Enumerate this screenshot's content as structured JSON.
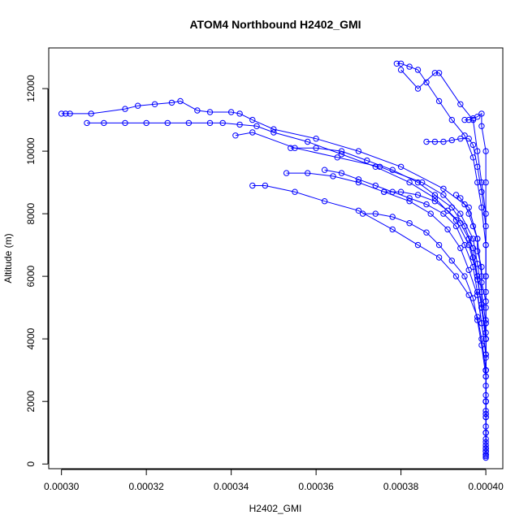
{
  "chart_data": {
    "type": "scatter",
    "title": "ATOM4 Northbound H2402_GMI",
    "xlabel": "H2402_GMI",
    "ylabel": "Altitude (m)",
    "xlim": [
      0.000297,
      0.000404
    ],
    "ylim": [
      -150,
      13300
    ],
    "x_ticks": [
      0.0003,
      0.00032,
      0.00034,
      0.00036,
      0.00038,
      0.0004
    ],
    "x_tick_labels": [
      "0.00030",
      "0.00032",
      "0.00034",
      "0.00036",
      "0.00038",
      "0.00040"
    ],
    "y_ticks": [
      0,
      2000,
      4000,
      6000,
      8000,
      10000,
      12000
    ],
    "y_tick_labels": [
      "0",
      "2000",
      "4000",
      "6000",
      "8000",
      "10000",
      "12000"
    ],
    "grid": false,
    "legend": "none",
    "color": "#0000ff",
    "marker": "open-circle",
    "series": [
      {
        "x": [
          0.0003,
          0.000301,
          0.000302,
          0.000307,
          0.000315,
          0.000318,
          0.000322,
          0.000326,
          0.000328,
          0.000332,
          0.000335,
          0.00034,
          0.000342,
          0.000345,
          0.00035,
          0.00036,
          0.00037,
          0.00038,
          0.00039,
          0.000396,
          0.000398,
          0.000399,
          0.000399,
          0.0004,
          0.0004,
          0.0004,
          0.0004,
          0.0004,
          0.0004,
          0.0004
        ],
        "y": [
          11200,
          11200,
          11200,
          11200,
          11350,
          11450,
          11500,
          11550,
          11600,
          11300,
          11250,
          11250,
          11200,
          11000,
          10700,
          10400,
          10000,
          9500,
          8800,
          8200,
          7200,
          6000,
          5000,
          4000,
          3000,
          2000,
          1200,
          700,
          400,
          250
        ]
      },
      {
        "x": [
          0.000306,
          0.00031,
          0.000315,
          0.00032,
          0.000325,
          0.00033,
          0.000335,
          0.000338,
          0.000342,
          0.000346,
          0.00035,
          0.000358,
          0.000366,
          0.000374,
          0.000382,
          0.000388,
          0.000393,
          0.000396,
          0.000398,
          0.000399,
          0.0004,
          0.0004,
          0.0004,
          0.0004,
          0.0004
        ],
        "y": [
          10900,
          10900,
          10900,
          10900,
          10900,
          10900,
          10900,
          10900,
          10850,
          10800,
          10600,
          10300,
          9900,
          9500,
          9000,
          8500,
          7800,
          7000,
          6000,
          5000,
          4000,
          3000,
          2000,
          1000,
          300
        ]
      },
      {
        "x": [
          0.000341,
          0.000345,
          0.000355,
          0.000365,
          0.000375,
          0.000385,
          0.00039,
          0.000394,
          0.000397,
          0.000398,
          0.000399,
          0.0004,
          0.0004,
          0.0004,
          0.0004,
          0.0004,
          0.0004
        ],
        "y": [
          10500,
          10600,
          10100,
          9800,
          9500,
          9000,
          8600,
          8000,
          7200,
          6400,
          5500,
          4500,
          3500,
          2500,
          1500,
          800,
          300
        ]
      },
      {
        "x": [
          0.000354,
          0.00036,
          0.000366,
          0.000372,
          0.000378,
          0.000384,
          0.000388,
          0.000392,
          0.000395,
          0.000397,
          0.000398,
          0.000399,
          0.0004,
          0.0004,
          0.0004,
          0.0004
        ],
        "y": [
          10100,
          10100,
          10000,
          9700,
          9400,
          9000,
          8600,
          8200,
          7600,
          6900,
          6000,
          5000,
          4000,
          2800,
          1500,
          400
        ]
      },
      {
        "x": [
          0.000345,
          0.000348,
          0.000355,
          0.000362,
          0.00037,
          0.000378,
          0.000384,
          0.000389,
          0.000393,
          0.000396,
          0.000398,
          0.000399,
          0.0004,
          0.0004,
          0.0004,
          0.0004
        ],
        "y": [
          8900,
          8900,
          8700,
          8400,
          8100,
          7500,
          7000,
          6600,
          6000,
          5400,
          4700,
          4000,
          3000,
          2000,
          1000,
          300
        ]
      },
      {
        "x": [
          0.000353,
          0.000358,
          0.000364,
          0.00037,
          0.000376,
          0.000382,
          0.000387,
          0.000391,
          0.000394,
          0.000396,
          0.000398,
          0.000399,
          0.0004,
          0.0004,
          0.0004
        ],
        "y": [
          9300,
          9300,
          9200,
          9000,
          8700,
          8400,
          8000,
          7500,
          6900,
          6200,
          5400,
          4500,
          3500,
          2000,
          500
        ]
      },
      {
        "x": [
          0.000371,
          0.000374,
          0.000378,
          0.000382,
          0.000386,
          0.000389,
          0.000392,
          0.000395,
          0.000397,
          0.000398,
          0.000399,
          0.0004,
          0.0004,
          0.0004
        ],
        "y": [
          8000,
          8000,
          7900,
          7700,
          7400,
          7000,
          6500,
          6000,
          5300,
          4600,
          3800,
          2800,
          1600,
          400
        ]
      },
      {
        "x": [
          0.000379,
          0.00038,
          0.000382,
          0.000384,
          0.000386,
          0.000389,
          0.000392,
          0.000395,
          0.000397,
          0.000398,
          0.000399,
          0.0004,
          0.0004,
          0.0004,
          0.0004,
          0.0004
        ],
        "y": [
          12800,
          12800,
          12700,
          12600,
          12200,
          11600,
          11000,
          10500,
          9800,
          9000,
          8200,
          7000,
          5500,
          4000,
          2000,
          500
        ]
      },
      {
        "x": [
          0.00038,
          0.000384,
          0.000388,
          0.000389,
          0.000394,
          0.000397,
          0.000398,
          0.000399,
          0.0004,
          0.0004,
          0.0004,
          0.0004,
          0.0004,
          0.0004
        ],
        "y": [
          12600,
          12000,
          12500,
          12500,
          11500,
          11000,
          10000,
          9000,
          8000,
          6000,
          4500,
          3000,
          1500,
          400
        ]
      },
      {
        "x": [
          0.000386,
          0.000388,
          0.00039,
          0.000392,
          0.000394,
          0.000396,
          0.000397,
          0.000398,
          0.000399,
          0.0004,
          0.0004,
          0.0004,
          0.0004,
          0.0004
        ],
        "y": [
          10300,
          10300,
          10300,
          10350,
          10400,
          10400,
          10200,
          9500,
          8700,
          7600,
          6000,
          4000,
          2000,
          500
        ]
      },
      {
        "x": [
          0.000362,
          0.000366,
          0.00037,
          0.000374,
          0.000378,
          0.000382,
          0.000386,
          0.00039,
          0.000393,
          0.000395,
          0.000397,
          0.000398,
          0.000399,
          0.0004,
          0.0004,
          0.0004
        ],
        "y": [
          9400,
          9300,
          9100,
          8900,
          8700,
          8500,
          8300,
          8000,
          7600,
          7000,
          6300,
          5500,
          4500,
          3500,
          2000,
          600
        ]
      },
      {
        "x": [
          0.000393,
          0.000394,
          0.000395,
          0.000396,
          0.000397,
          0.000398,
          0.000398,
          0.000399,
          0.000399,
          0.0004,
          0.0004,
          0.0004,
          0.0004,
          0.0004,
          0.0004,
          0.0004,
          0.0004,
          0.0004,
          0.0004
        ],
        "y": [
          8600,
          8500,
          8300,
          8000,
          7600,
          7200,
          6800,
          6300,
          5800,
          5200,
          4600,
          4000,
          3400,
          2800,
          2200,
          1600,
          1000,
          600,
          200
        ]
      },
      {
        "x": [
          0.000376,
          0.00038,
          0.000384,
          0.000388,
          0.000391,
          0.000394,
          0.000396,
          0.000397,
          0.000398,
          0.000399,
          0.0004,
          0.0004,
          0.0004,
          0.0004
        ],
        "y": [
          8700,
          8700,
          8600,
          8400,
          8100,
          7700,
          7200,
          6600,
          5900,
          5100,
          4200,
          3000,
          1700,
          500
        ]
      },
      {
        "x": [
          0.000395,
          0.000396,
          0.000397,
          0.000398,
          0.000399,
          0.000399,
          0.0004,
          0.0004,
          0.0004,
          0.0004,
          0.0004,
          0.0004
        ],
        "y": [
          11000,
          11000,
          11050,
          11100,
          11200,
          10800,
          10000,
          9000,
          7000,
          5000,
          3000,
          1000
        ]
      }
    ]
  }
}
